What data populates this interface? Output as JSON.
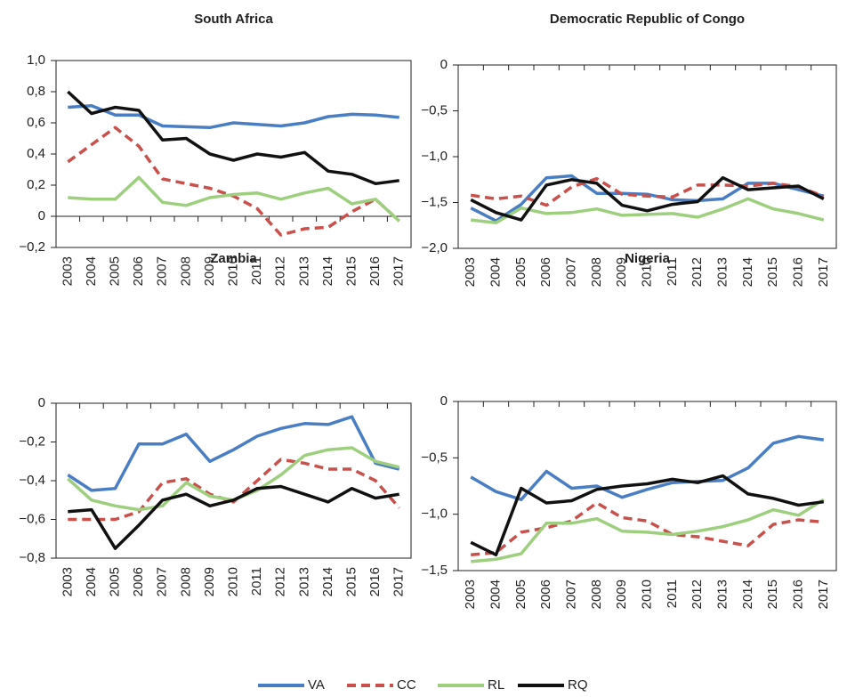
{
  "chart_data": [
    {
      "type": "line",
      "title": "South Africa",
      "categories": [
        "2003",
        "2004",
        "2005",
        "2006",
        "2007",
        "2008",
        "2009",
        "2010",
        "2011",
        "2012",
        "2013",
        "2014",
        "2015",
        "2016",
        "2017"
      ],
      "ylim": [
        -0.2,
        1.0
      ],
      "yticks": [
        {
          "value": 1.0,
          "label": "1,0"
        },
        {
          "value": 0.8,
          "label": "0,8"
        },
        {
          "value": 0.6,
          "label": "0,6"
        },
        {
          "value": 0.4,
          "label": "0,4"
        },
        {
          "value": 0.2,
          "label": "0,2"
        },
        0,
        {
          "value": -0.2,
          "label": "−0,2"
        }
      ],
      "series": [
        {
          "name": "VA",
          "color": "#4a7ec4",
          "dash": false,
          "values": [
            0.7,
            0.71,
            0.65,
            0.65,
            0.58,
            0.575,
            0.57,
            0.6,
            0.59,
            0.58,
            0.6,
            0.64,
            0.655,
            0.65,
            0.635
          ]
        },
        {
          "name": "CC",
          "color": "#c9504b",
          "dash": true,
          "values": [
            0.35,
            0.46,
            0.57,
            0.45,
            0.24,
            0.21,
            0.18,
            0.13,
            0.05,
            -0.12,
            -0.08,
            -0.07,
            0.03,
            0.11,
            -0.03
          ]
        },
        {
          "name": "RL",
          "color": "#9dcf7f",
          "dash": false,
          "values": [
            0.12,
            0.11,
            0.11,
            0.25,
            0.09,
            0.07,
            0.12,
            0.14,
            0.15,
            0.11,
            0.15,
            0.18,
            0.08,
            0.11,
            -0.03
          ]
        },
        {
          "name": "RQ",
          "color": "#111111",
          "dash": false,
          "values": [
            0.8,
            0.66,
            0.7,
            0.68,
            0.49,
            0.5,
            0.4,
            0.36,
            0.4,
            0.38,
            0.41,
            0.29,
            0.27,
            0.21,
            0.23
          ]
        }
      ]
    },
    {
      "type": "line",
      "title": "Democratic Republic of Congo",
      "categories": [
        "2003",
        "2004",
        "2005",
        "2006",
        "2007",
        "2008",
        "2009",
        "2010",
        "2011",
        "2012",
        "2013",
        "2014",
        "2015",
        "2016",
        "2017"
      ],
      "ylim": [
        -2.0,
        0
      ],
      "yticks": [
        0,
        {
          "value": -0.5,
          "label": "−0,5"
        },
        {
          "value": -1.0,
          "label": "−1,0"
        },
        {
          "value": -1.5,
          "label": "−1,5"
        },
        {
          "value": -2.0,
          "label": "−2,0"
        }
      ],
      "series": [
        {
          "name": "VA",
          "color": "#4a7ec4",
          "dash": false,
          "values": [
            -1.56,
            -1.7,
            -1.52,
            -1.23,
            -1.21,
            -1.4,
            -1.4,
            -1.41,
            -1.47,
            -1.48,
            -1.46,
            -1.29,
            -1.29,
            -1.36,
            -1.43
          ]
        },
        {
          "name": "CC",
          "color": "#c9504b",
          "dash": true,
          "values": [
            -1.42,
            -1.46,
            -1.43,
            -1.53,
            -1.33,
            -1.24,
            -1.41,
            -1.43,
            -1.44,
            -1.31,
            -1.31,
            -1.32,
            -1.29,
            -1.33,
            -1.43
          ]
        },
        {
          "name": "RL",
          "color": "#9dcf7f",
          "dash": false,
          "values": [
            -1.69,
            -1.72,
            -1.56,
            -1.62,
            -1.61,
            -1.57,
            -1.64,
            -1.63,
            -1.62,
            -1.66,
            -1.57,
            -1.46,
            -1.57,
            -1.62,
            -1.69
          ]
        },
        {
          "name": "RQ",
          "color": "#111111",
          "dash": false,
          "values": [
            -1.47,
            -1.61,
            -1.69,
            -1.31,
            -1.25,
            -1.29,
            -1.53,
            -1.59,
            -1.52,
            -1.49,
            -1.23,
            -1.36,
            -1.34,
            -1.32,
            -1.46
          ]
        }
      ]
    },
    {
      "type": "line",
      "title": "Zambia",
      "categories": [
        "2003",
        "2004",
        "2005",
        "2006",
        "2007",
        "2008",
        "2009",
        "2010",
        "2011",
        "2012",
        "2013",
        "2014",
        "2015",
        "2016",
        "2017"
      ],
      "ylim": [
        -0.8,
        0
      ],
      "yticks": [
        0,
        {
          "value": -0.2,
          "label": "−0,2"
        },
        {
          "value": -0.4,
          "label": "−0,4"
        },
        {
          "value": -0.6,
          "label": "−0,6"
        },
        {
          "value": -0.8,
          "label": "−0,8"
        }
      ],
      "series": [
        {
          "name": "VA",
          "color": "#4a7ec4",
          "dash": false,
          "values": [
            -0.37,
            -0.45,
            -0.44,
            -0.21,
            -0.21,
            -0.16,
            -0.3,
            -0.24,
            -0.17,
            -0.13,
            -0.105,
            -0.11,
            -0.07,
            -0.31,
            -0.34
          ]
        },
        {
          "name": "CC",
          "color": "#c9504b",
          "dash": true,
          "values": [
            -0.6,
            -0.6,
            -0.6,
            -0.56,
            -0.41,
            -0.39,
            -0.47,
            -0.51,
            -0.4,
            -0.29,
            -0.31,
            -0.34,
            -0.34,
            -0.4,
            -0.54
          ]
        },
        {
          "name": "RL",
          "color": "#9dcf7f",
          "dash": false,
          "values": [
            -0.39,
            -0.5,
            -0.53,
            -0.55,
            -0.53,
            -0.41,
            -0.48,
            -0.5,
            -0.45,
            -0.37,
            -0.27,
            -0.24,
            -0.23,
            -0.3,
            -0.33
          ]
        },
        {
          "name": "RQ",
          "color": "#111111",
          "dash": false,
          "values": [
            -0.56,
            -0.55,
            -0.75,
            -0.63,
            -0.5,
            -0.47,
            -0.53,
            -0.5,
            -0.44,
            -0.43,
            -0.47,
            -0.51,
            -0.44,
            -0.49,
            -0.47
          ]
        }
      ]
    },
    {
      "type": "line",
      "title": "Nigeria",
      "categories": [
        "2003",
        "2004",
        "2005",
        "2006",
        "2007",
        "2008",
        "2009",
        "2010",
        "2011",
        "2012",
        "2013",
        "2014",
        "2015",
        "2016",
        "2017"
      ],
      "ylim": [
        -1.5,
        0
      ],
      "yticks": [
        0,
        {
          "value": -0.5,
          "label": "−0,5"
        },
        {
          "value": -1.0,
          "label": "−1,0"
        },
        {
          "value": -1.5,
          "label": "−1,5"
        }
      ],
      "series": [
        {
          "name": "VA",
          "color": "#4a7ec4",
          "dash": false,
          "values": [
            -0.67,
            -0.8,
            -0.87,
            -0.62,
            -0.77,
            -0.75,
            -0.85,
            -0.78,
            -0.72,
            -0.71,
            -0.7,
            -0.59,
            -0.37,
            -0.31,
            -0.34
          ]
        },
        {
          "name": "CC",
          "color": "#c9504b",
          "dash": true,
          "values": [
            -1.36,
            -1.34,
            -1.16,
            -1.12,
            -1.06,
            -0.9,
            -1.03,
            -1.06,
            -1.18,
            -1.2,
            -1.24,
            -1.28,
            -1.09,
            -1.05,
            -1.07
          ]
        },
        {
          "name": "RL",
          "color": "#9dcf7f",
          "dash": false,
          "values": [
            -1.42,
            -1.4,
            -1.35,
            -1.08,
            -1.08,
            -1.04,
            -1.15,
            -1.16,
            -1.18,
            -1.15,
            -1.11,
            -1.05,
            -0.96,
            -1.01,
            -0.87
          ]
        },
        {
          "name": "RQ",
          "color": "#111111",
          "dash": false,
          "values": [
            -1.25,
            -1.36,
            -0.77,
            -0.9,
            -0.88,
            -0.78,
            -0.75,
            -0.73,
            -0.69,
            -0.72,
            -0.66,
            -0.82,
            -0.86,
            -0.92,
            -0.89
          ]
        }
      ]
    }
  ]
}
